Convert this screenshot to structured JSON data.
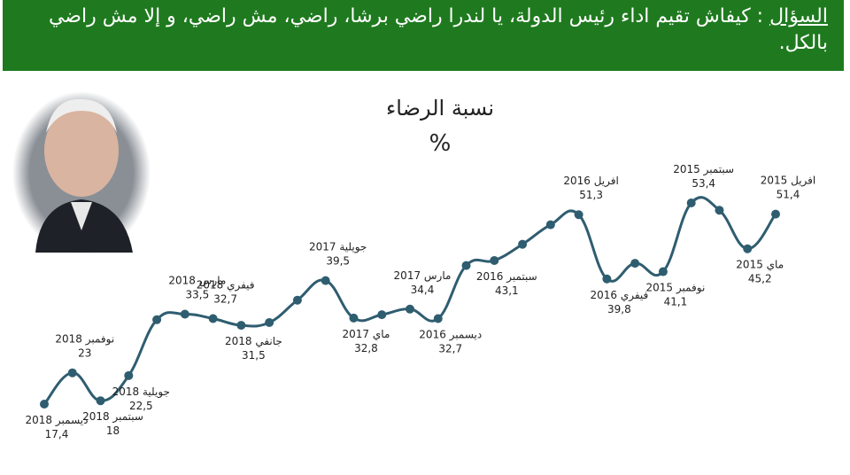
{
  "header": {
    "label": "السؤال",
    "text": " : كيفاش تقيم اداء  رئيس الدولة، يا لندرا راضي برشا، راضي، مش راضي، و إلا مش راضي بالكل."
  },
  "chart_data": {
    "type": "line",
    "title": "نسبة الرضاء",
    "subtitle": "%",
    "categories": [
      "ديسمبر 2018",
      "نوفمبر 2018",
      "سبتمبر 2018",
      "جويلية 2018",
      null,
      "مارس 2018",
      "فيفري 2018",
      "جانفي 2018",
      null,
      null,
      "جويلية 2017",
      "ماي 2017",
      null,
      "مارس 2017",
      "ديسمبر 2016",
      null,
      "سبتمبر 2016",
      null,
      null,
      "افريل 2016",
      "فيفري 2016",
      null,
      "نوفمبر 2015",
      "سبتمبر 2015",
      null,
      "ماي 2015",
      "افريل 2015"
    ],
    "values": [
      17.4,
      23,
      18,
      22.5,
      32.5,
      33.5,
      32.7,
      31.5,
      32.0,
      36.0,
      39.5,
      32.8,
      33.4,
      34.4,
      32.7,
      42.2,
      43.1,
      46.0,
      49.5,
      51.3,
      39.8,
      42.6,
      41.1,
      53.4,
      52.1,
      45.2,
      51.4
    ],
    "value_labels": [
      "17,4",
      "23",
      "18",
      "22,5",
      null,
      "33,5",
      "32,7",
      "31,5",
      null,
      null,
      "39,5",
      "32,8",
      null,
      "34,4",
      "32,7",
      null,
      "43,1",
      null,
      null,
      "51,3",
      "39,8",
      null,
      "41,1",
      "53,4",
      null,
      "45,2",
      "51,4"
    ],
    "color": "#2f5d70"
  }
}
